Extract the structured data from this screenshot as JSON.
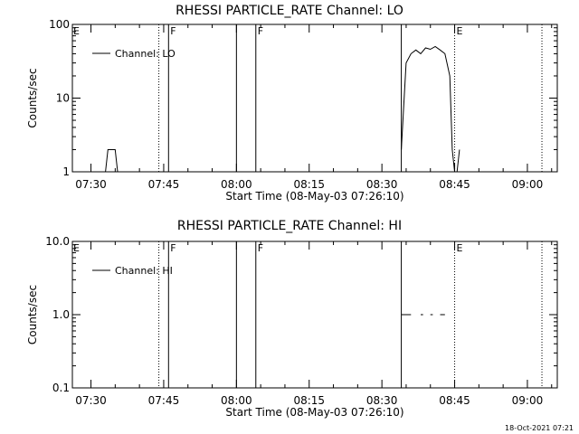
{
  "footer_timestamp": "18-Oct-2021 07:21",
  "chart_data": [
    {
      "type": "line",
      "title": "RHESSI PARTICLE_RATE Channel: LO",
      "xlabel": "Start Time (08-May-03 07:26:10)",
      "ylabel": "Counts/sec",
      "y_scale": "log",
      "ylim": [
        1,
        100
      ],
      "y_ticks": [
        {
          "v": 1,
          "label": "1"
        },
        {
          "v": 10,
          "label": "10"
        },
        {
          "v": 100,
          "label": "100"
        }
      ],
      "x_ticks": [
        "07:30",
        "07:45",
        "08:00",
        "08:15",
        "08:30",
        "08:45",
        "09:00"
      ],
      "legend": {
        "label": "Channel: LO",
        "position": "top-left"
      },
      "markers": [
        {
          "time": "07:44",
          "style": "dotted",
          "label": ""
        },
        {
          "time": "07:46",
          "style": "solid",
          "label": "F"
        },
        {
          "time": "08:00",
          "style": "solid",
          "label": ""
        },
        {
          "time": "08:04",
          "style": "solid",
          "label": "F"
        },
        {
          "time": "08:34",
          "style": "solid",
          "label": ""
        },
        {
          "time": "08:45",
          "style": "dotted",
          "label": "E"
        },
        {
          "time": "09:03",
          "style": "dotted",
          "label": ""
        }
      ],
      "corner_label": "E",
      "segments": [
        {
          "x": [
            "07:33",
            "07:33.5",
            "07:34",
            "07:35",
            "07:35.5"
          ],
          "y": [
            1,
            2,
            2,
            2,
            1
          ]
        },
        {
          "x": [
            "08:34",
            "08:34.5",
            "08:35",
            "08:36",
            "08:37",
            "08:38",
            "08:39",
            "08:40",
            "08:41",
            "08:42",
            "08:43",
            "08:44",
            "08:44.5",
            "08:45"
          ],
          "y": [
            2,
            8,
            30,
            40,
            45,
            40,
            48,
            46,
            50,
            45,
            40,
            20,
            2,
            1
          ]
        },
        {
          "x": [
            "08:45.5",
            "08:46"
          ],
          "y": [
            1,
            2
          ]
        }
      ]
    },
    {
      "type": "line",
      "title": "RHESSI PARTICLE_RATE Channel: HI",
      "xlabel": "Start Time (08-May-03 07:26:10)",
      "ylabel": "Counts/sec",
      "y_scale": "log",
      "ylim": [
        0.1,
        10
      ],
      "y_ticks": [
        {
          "v": 0.1,
          "label": "0.1"
        },
        {
          "v": 1,
          "label": "1.0"
        },
        {
          "v": 10,
          "label": "10.0"
        }
      ],
      "x_ticks": [
        "07:30",
        "07:45",
        "08:00",
        "08:15",
        "08:30",
        "08:45",
        "09:00"
      ],
      "legend": {
        "label": "Channel: HI",
        "position": "top-left"
      },
      "markers": [
        {
          "time": "07:44",
          "style": "dotted",
          "label": ""
        },
        {
          "time": "07:46",
          "style": "solid",
          "label": "F"
        },
        {
          "time": "08:00",
          "style": "solid",
          "label": ""
        },
        {
          "time": "08:04",
          "style": "solid",
          "label": "F"
        },
        {
          "time": "08:34",
          "style": "solid",
          "label": ""
        },
        {
          "time": "08:45",
          "style": "dotted",
          "label": "E"
        },
        {
          "time": "09:03",
          "style": "dotted",
          "label": ""
        }
      ],
      "corner_label": "E",
      "segments": [
        {
          "x": [
            "08:34",
            "08:36"
          ],
          "y": [
            1,
            1
          ]
        },
        {
          "x": [
            "08:38",
            "08:38.5"
          ],
          "y": [
            1,
            1
          ]
        },
        {
          "x": [
            "08:40",
            "08:40.5"
          ],
          "y": [
            1,
            1
          ]
        },
        {
          "x": [
            "08:42",
            "08:43"
          ],
          "y": [
            1,
            1
          ]
        }
      ]
    }
  ]
}
